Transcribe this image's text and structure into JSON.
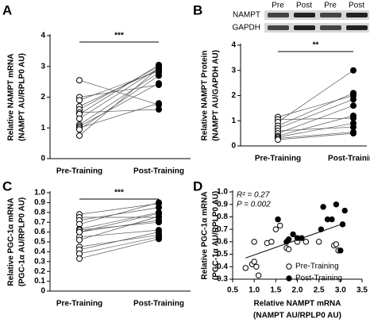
{
  "chart_data": [
    {
      "type": "paired",
      "panel_label": "A",
      "y_label": [
        "Relative NAMPT mRNA",
        "(NAMPT AU/RPLP0 AU)"
      ],
      "categories": [
        "Pre-Training",
        "Post-Training"
      ],
      "fills": [
        "#ffffff",
        "#000000"
      ],
      "values": [
        [
          2.55,
          2.0,
          1.9,
          1.7,
          1.6,
          1.5,
          1.45,
          1.3,
          1.1,
          1.05,
          1.0,
          0.95,
          0.75
        ],
        [
          1.75,
          2.4,
          2.85,
          2.9,
          3.0,
          1.6,
          3.05,
          2.95,
          2.8,
          2.45,
          1.8,
          2.7,
          2.95
        ]
      ],
      "ylim": [
        0,
        4
      ],
      "yticks": [
        0,
        1,
        2,
        3,
        4
      ],
      "significance": "***"
    },
    {
      "type": "paired",
      "panel_label": "B",
      "y_label": [
        "Relative NAMPT Protein",
        "(NAMPT AU/GAPDH AU)"
      ],
      "categories": [
        "Pre-Training",
        "Post-Training"
      ],
      "fills": [
        "#ffffff",
        "#000000"
      ],
      "values": [
        [
          1.15,
          1.05,
          0.95,
          0.8,
          0.7,
          0.6,
          0.5,
          0.4,
          0.35,
          0.3,
          0.25
        ],
        [
          2.0,
          1.1,
          3.0,
          2.1,
          1.85,
          0.75,
          1.6,
          1.2,
          0.9,
          0.55,
          0.5
        ]
      ],
      "ylim": [
        0,
        4
      ],
      "yticks": [
        0,
        1,
        2,
        3,
        4
      ],
      "significance": "**",
      "blot": {
        "rows": [
          "NAMPT",
          "GAPDH"
        ],
        "lanes": [
          "Pre",
          "Post",
          "Pre",
          "Post"
        ]
      }
    },
    {
      "type": "paired",
      "panel_label": "C",
      "y_label": [
        "Relative PGC-1α mRNA",
        "(PGC-1α AU/RPLP0 AU)"
      ],
      "categories": [
        "Pre-Training",
        "Post-Training"
      ],
      "fills": [
        "#ffffff",
        "#000000"
      ],
      "values": [
        [
          0.78,
          0.75,
          0.72,
          0.68,
          0.63,
          0.62,
          0.6,
          0.55,
          0.52,
          0.45,
          0.42,
          0.38,
          0.33,
          0.6
        ],
        [
          0.89,
          0.75,
          0.85,
          0.9,
          0.8,
          0.7,
          0.79,
          0.62,
          0.76,
          0.57,
          0.6,
          0.55,
          0.53,
          0.72
        ]
      ],
      "ylim": [
        0,
        1
      ],
      "yticks": [
        0,
        0.1,
        0.2,
        0.3,
        0.4,
        0.5,
        0.6,
        0.7,
        0.8,
        0.9,
        {
          "value": 1,
          "label": "1.0"
        }
      ],
      "significance": "***"
    },
    {
      "type": "scatter",
      "panel_label": "D",
      "y_label": [
        "Relative PGC-1α mRNA",
        "(PGC-1α AU/RPLP0 AU)"
      ],
      "x_label": [
        "Relative NAMPT mRNA",
        "(NAMPT AU/RPLP0 AU)"
      ],
      "annotations": [
        "R² = 0.27",
        "P = 0.002"
      ],
      "series": [
        {
          "name": "Pre-Training",
          "fill": "#ffffff",
          "x": [
            0.8,
            0.95,
            1.0,
            1.05,
            1.1,
            1.0,
            1.3,
            1.4,
            1.5,
            1.55,
            1.6,
            1.75,
            1.8,
            2.0,
            2.2,
            2.5,
            2.85,
            2.9,
            2.95
          ],
          "y": [
            0.39,
            0.42,
            0.44,
            0.4,
            0.33,
            0.6,
            0.59,
            0.6,
            0.7,
            0.78,
            0.73,
            0.55,
            0.54,
            0.6,
            0.6,
            0.6,
            0.57,
            0.58,
            0.53
          ]
        },
        {
          "name": "Post-Training",
          "fill": "#000000",
          "x": [
            1.55,
            1.75,
            1.8,
            1.9,
            2.0,
            2.1,
            2.55,
            2.6,
            2.7,
            2.8,
            2.9,
            3.0,
            3.05,
            3.1
          ],
          "y": [
            0.78,
            0.6,
            0.62,
            0.66,
            0.63,
            0.63,
            0.7,
            0.88,
            0.78,
            0.78,
            0.9,
            0.53,
            0.74,
            0.85
          ]
        }
      ],
      "trendline": {
        "x": [
          0.8,
          3.1
        ],
        "y": [
          0.47,
          0.75
        ]
      },
      "xlim": [
        0.5,
        3.5
      ],
      "xticks": [
        0.5,
        {
          "value": 1,
          "label": "1.0"
        },
        1.5,
        {
          "value": 2,
          "label": "2.0"
        },
        2.5,
        {
          "value": 3,
          "label": "3.0"
        },
        3.5
      ],
      "ylim": [
        0.3,
        1
      ],
      "yticks": [
        0.3,
        0.4,
        0.5,
        0.6,
        0.7,
        0.8,
        0.9,
        {
          "value": 1,
          "label": "1.0"
        }
      ]
    }
  ]
}
